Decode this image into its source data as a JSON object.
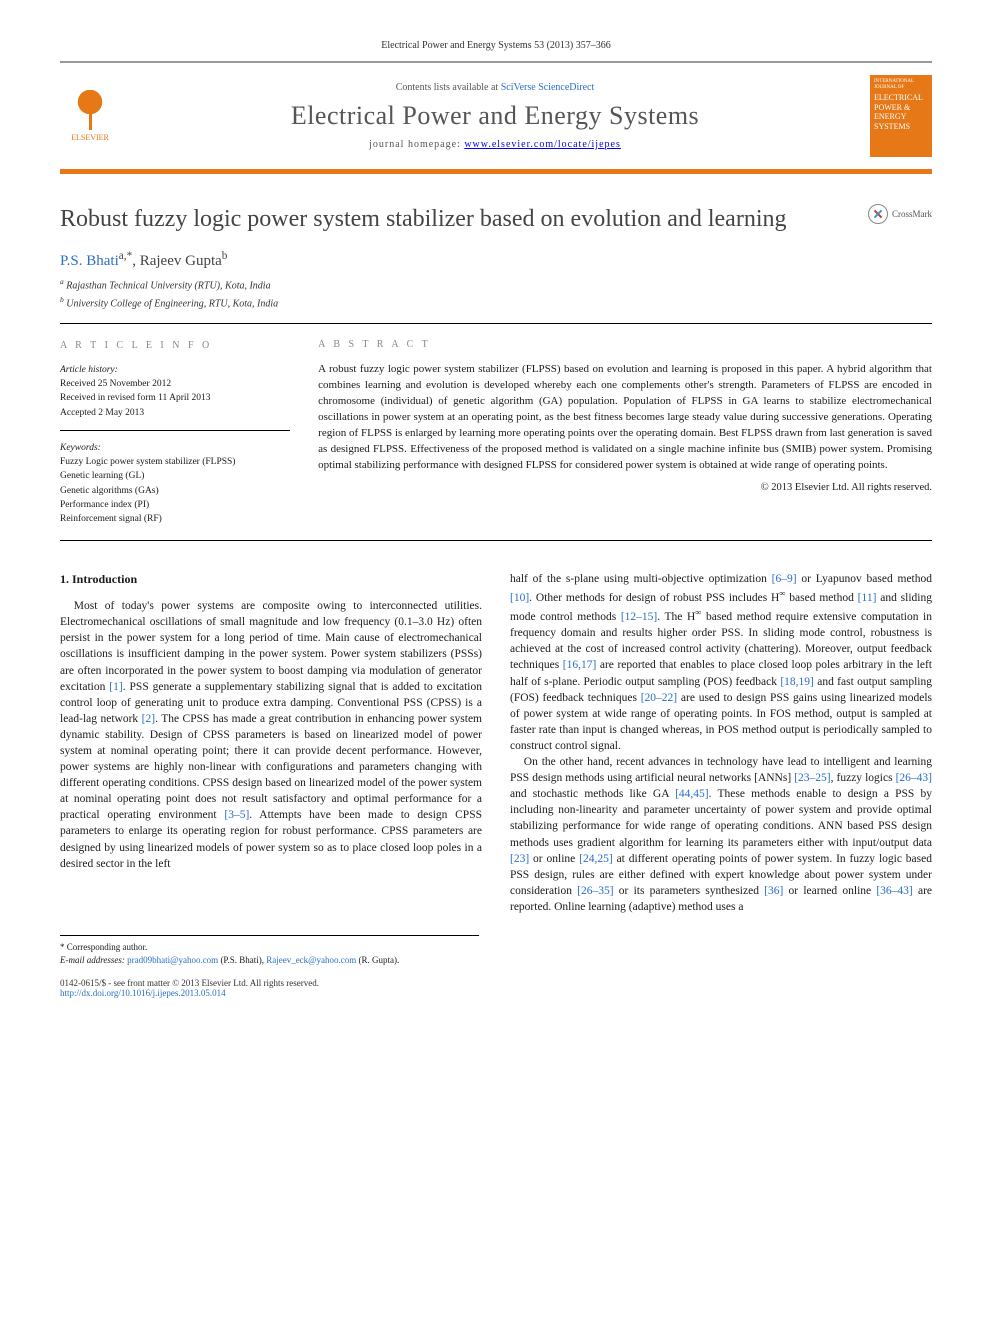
{
  "journal_ref": "Electrical Power and Energy Systems 53 (2013) 357–366",
  "header": {
    "publisher": "ELSEVIER",
    "contents_prefix": "Contents lists available at ",
    "contents_link": "SciVerse ScienceDirect",
    "journal_title": "Electrical Power and Energy Systems",
    "homepage_prefix": "journal homepage: ",
    "homepage_url": "www.elsevier.com/locate/ijepes",
    "cover_top": "INTERNATIONAL JOURNAL OF",
    "cover_main": "ELECTRICAL POWER & ENERGY SYSTEMS"
  },
  "crossmark_label": "CrossMark",
  "title": "Robust fuzzy logic power system stabilizer based on evolution and learning",
  "authors_html": "P.S. Bhati",
  "author_a_sup": "a,*",
  "author_sep": ", Rajeev Gupta",
  "author_b_sup": "b",
  "aff_a": "Rajasthan Technical University (RTU), Kota, India",
  "aff_b": "University College of Engineering, RTU, Kota, India",
  "info": {
    "heading": "A R T I C L E   I N F O",
    "history_label": "Article history:",
    "received": "Received 25 November 2012",
    "revised": "Received in revised form 11 April 2013",
    "accepted": "Accepted 2 May 2013",
    "keywords_label": "Keywords:",
    "kw1": "Fuzzy Logic power system stabilizer (FLPSS)",
    "kw2": "Genetic learning (GL)",
    "kw3": "Genetic algorithms (GAs)",
    "kw4": "Performance index (PI)",
    "kw5": "Reinforcement signal (RF)"
  },
  "abstract": {
    "heading": "A B S T R A C T",
    "text": "A robust fuzzy logic power system stabilizer (FLPSS) based on evolution and learning is proposed in this paper. A hybrid algorithm that combines learning and evolution is developed whereby each one complements other's strength. Parameters of FLPSS are encoded in chromosome (individual) of genetic algorithm (GA) population. Population of FLPSS in GA learns to stabilize electromechanical oscillations in power system at an operating point, as the best fitness becomes large steady value during successive generations. Operating region of FLPSS is enlarged by learning more operating points over the operating domain. Best FLPSS drawn from last generation is saved as designed FLPSS. Effectiveness of the proposed method is validated on a single machine infinite bus (SMIB) power system. Promising optimal stabilizing performance with designed FLPSS for considered power system is obtained at wide range of operating points.",
    "copyright": "© 2013 Elsevier Ltd. All rights reserved."
  },
  "section1_heading": "1. Introduction",
  "col_left_p1a": "Most of today's power systems are composite owing to interconnected utilities. Electromechanical oscillations of small magnitude and low frequency (0.1–3.0 Hz) often persist in the power system for a long period of time. Main cause of electromechanical oscillations is insufficient damping in the power system. Power system stabilizers (PSSs) are often incorporated in the power system to boost damping via modulation of generator excitation ",
  "ref1": "[1]",
  "col_left_p1b": ". PSS generate a supplementary stabilizing signal that is added to excitation control loop of generating unit to produce extra damping. Conventional PSS (CPSS) is a lead-lag network ",
  "ref2": "[2]",
  "col_left_p1c": ". The CPSS has made a great contribution in enhancing power system dynamic stability. Design of CPSS parameters is based on linearized model of power system at nominal operating point; there it can provide decent performance. However, power systems are highly non-linear with configurations and parameters changing with different operating conditions. CPSS design based on linearized model of the power system at nominal operating point does not result satisfactory and optimal performance for a practical operating environment ",
  "ref35": "[3–5]",
  "col_left_p1d": ". Attempts have been made to design CPSS parameters to enlarge its operating region for robust performance. CPSS parameters are designed by using linearized models of power system so as to place closed loop poles in a desired sector in the left",
  "col_right_p1a": "half of the s-plane using multi-objective optimization ",
  "ref69": "[6–9]",
  "col_right_p1b": " or Lyapunov based method ",
  "ref10": "[10]",
  "col_right_p1c": ". Other methods for design of robust PSS includes H",
  "hinf": "∞",
  "col_right_p1d": " based method ",
  "ref11": "[11]",
  "col_right_p1e": " and sliding mode control methods ",
  "ref1215": "[12–15]",
  "col_right_p1f": ". The H",
  "col_right_p1g": " based method require extensive computation in frequency domain and results higher order PSS. In sliding mode control, robustness is achieved at the cost of increased control activity (chattering). Moreover, output feedback techniques ",
  "ref1617": "[16,17]",
  "col_right_p1h": " are reported that enables to place closed loop poles arbitrary in the left half of s-plane. Periodic output sampling (POS) feedback ",
  "ref1819": "[18,19]",
  "col_right_p1i": " and fast output sampling (FOS) feedback techniques ",
  "ref2022": "[20–22]",
  "col_right_p1j": " are used to design PSS gains using linearized models of power system at wide range of operating points. In FOS method, output is sampled at faster rate than input is changed whereas, in POS method output is periodically sampled to construct control signal.",
  "col_right_p2a": "On the other hand, recent advances in technology have lead to intelligent and learning PSS design methods using artificial neural networks [ANNs] ",
  "ref2325": "[23–25]",
  "col_right_p2b": ", fuzzy logics ",
  "ref2643": "[26–43]",
  "col_right_p2c": " and stochastic methods like GA ",
  "ref4445": "[44,45]",
  "col_right_p2d": ". These methods enable to design a PSS by including non-linearity and parameter uncertainty of power system and provide optimal stabilizing performance for wide range of operating conditions. ANN based PSS design methods uses gradient algorithm for learning its parameters either with input/output data ",
  "ref23": "[23]",
  "col_right_p2e": " or online ",
  "ref2425": "[24,25]",
  "col_right_p2f": " at different operating points of power system. In fuzzy logic based PSS design, rules are either defined with expert knowledge about power system under consideration ",
  "ref2635": "[26–35]",
  "col_right_p2g": " or its parameters synthesized ",
  "ref36": "[36]",
  "col_right_p2h": " or learned online ",
  "ref3643": "[36–43]",
  "col_right_p2i": " are reported. Online learning (adaptive) method uses a",
  "footnote": {
    "corresponding": "* Corresponding author.",
    "email_label": "E-mail addresses: ",
    "email1": "prad09bhati@yahoo.com",
    "email1_who": " (P.S. Bhati), ",
    "email2": "Rajeev_eck@yahoo.com",
    "email2_who": " (R. Gupta)."
  },
  "footer": {
    "left1": "0142-0615/$ - see front matter © 2013 Elsevier Ltd. All rights reserved.",
    "left2": "http://dx.doi.org/10.1016/j.ijepes.2013.05.014"
  },
  "colors": {
    "accent": "#e67817",
    "link": "#2a6ec6",
    "text": "#1a1a1a",
    "muted": "#888"
  }
}
